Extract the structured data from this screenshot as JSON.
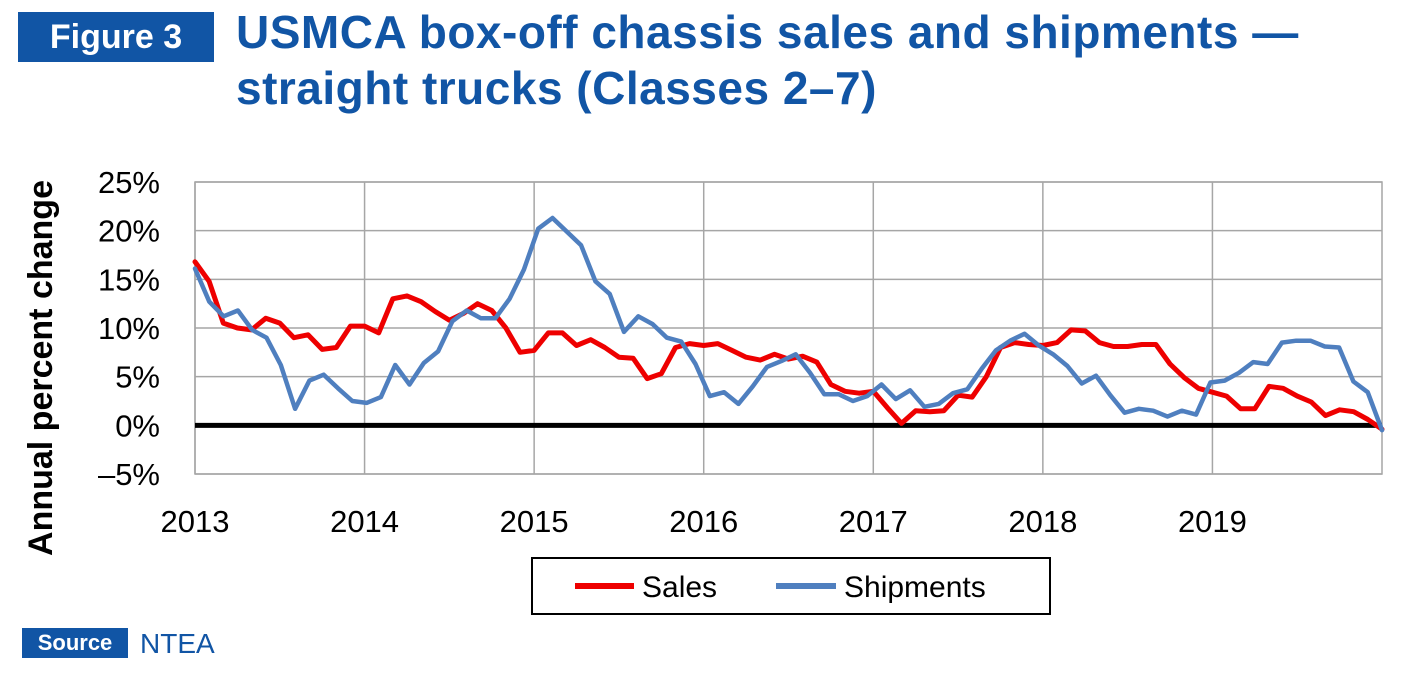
{
  "figure_label": "Figure 3",
  "title_line1": "USMCA box-off chassis sales and shipments —",
  "title_line2": "straight trucks (Classes 2–7)",
  "source_label": "Source",
  "source_text": "NTEA",
  "colors": {
    "brand_blue": "#1155a5",
    "sales": "#ee0000",
    "shipments": "#4f7fbf",
    "zero_line": "#000000",
    "grid": "#a6a6a6"
  },
  "chart_data": {
    "type": "line",
    "ylabel": "Annual percent change",
    "ylim": [
      -5,
      25
    ],
    "xlim": [
      2013,
      2020
    ],
    "yticks": [
      25,
      20,
      15,
      10,
      5,
      0,
      -5
    ],
    "ytick_labels": [
      "25%",
      "20%",
      "15%",
      "10%",
      "5%",
      "0%",
      "–5%"
    ],
    "xtick_labels": [
      "2013",
      "2014",
      "2015",
      "2016",
      "2017",
      "2018",
      "2019"
    ],
    "grid": true,
    "legend_position": "bottom",
    "series": [
      {
        "name": "Sales",
        "color": "#ee0000",
        "values": [
          16.8,
          14.8,
          10.5,
          10.0,
          9.8,
          11.0,
          10.5,
          9.0,
          9.3,
          7.8,
          8.0,
          10.2,
          10.2,
          9.5,
          13.0,
          13.3,
          12.7,
          11.7,
          10.8,
          11.5,
          12.5,
          11.8,
          10.0,
          7.5,
          7.7,
          9.5,
          9.5,
          8.2,
          8.8,
          8.0,
          7.0,
          6.9,
          4.8,
          5.3,
          8.0,
          8.4,
          8.2,
          8.4,
          7.7,
          7.0,
          6.7,
          7.3,
          6.8,
          7.1,
          6.5,
          4.2,
          3.5,
          3.3,
          3.5,
          1.8,
          0.2,
          1.5,
          1.4,
          1.5,
          3.1,
          2.9,
          5.0,
          8.0,
          8.5,
          8.3,
          8.2,
          8.5,
          9.8,
          9.7,
          8.5,
          8.1,
          8.1,
          8.3,
          8.3,
          6.3,
          4.9,
          3.8,
          3.4,
          3.0,
          1.7,
          1.7,
          4.0,
          3.8,
          3.0,
          2.4,
          1.0,
          1.6,
          1.4,
          0.6,
          -0.4
        ]
      },
      {
        "name": "Shipments",
        "color": "#4f7fbf",
        "values": [
          16.1,
          12.7,
          11.2,
          11.8,
          9.8,
          9.0,
          6.2,
          1.7,
          4.6,
          5.2,
          3.8,
          2.5,
          2.3,
          2.9,
          6.2,
          4.2,
          6.4,
          7.6,
          10.7,
          11.8,
          11.0,
          11.0,
          13.0,
          16.0,
          20.2,
          21.3,
          19.9,
          18.5,
          14.8,
          13.5,
          9.6,
          11.2,
          10.4,
          9.0,
          8.6,
          6.3,
          3.0,
          3.4,
          2.2,
          4.0,
          6.0,
          6.6,
          7.3,
          5.4,
          3.2,
          3.2,
          2.5,
          3.0,
          4.2,
          2.7,
          3.6,
          1.9,
          2.2,
          3.3,
          3.7,
          5.8,
          7.7,
          8.7,
          9.4,
          8.2,
          7.3,
          6.1,
          4.3,
          5.1,
          3.1,
          1.3,
          1.7,
          1.5,
          0.9,
          1.5,
          1.1,
          4.4,
          4.6,
          5.4,
          6.5,
          6.3,
          8.5,
          8.7,
          8.7,
          8.1,
          8.0,
          4.5,
          3.4,
          -0.5
        ]
      }
    ]
  }
}
